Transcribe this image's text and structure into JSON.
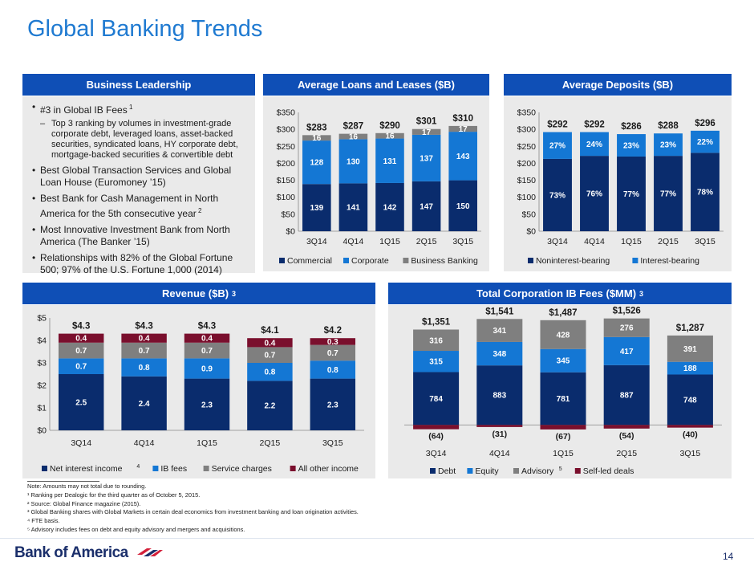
{
  "page_title": "Global Banking Trends",
  "page_number": "14",
  "brand": "Bank of America",
  "colors": {
    "navy": "#0a2c6d",
    "blue": "#1477d4",
    "gray": "#7f7f7f",
    "maroon": "#7a0f2d",
    "header": "#0f4fb6"
  },
  "business_leadership": {
    "heading": "Business Leadership",
    "bullets": [
      {
        "text": "#3 in Global IB Fees",
        "sup": "1"
      },
      {
        "text": "Top 3 ranking by volumes in investment-grade corporate debt, leveraged loans, asset-backed securities, syndicated loans, HY corporate debt, mortgage-backed securities & convertible debt",
        "sub": true
      },
      {
        "text": "Best Global Transaction Services and Global Loan House (Euromoney ’15)"
      },
      {
        "text": "Best Bank for Cash Management in North America for the 5th consecutive year",
        "sup": "2"
      },
      {
        "text": "Most Innovative Investment Bank from North America (The Banker ’15)"
      },
      {
        "text": "Relationships with 82% of the Global Fortune 500; 97% of the U.S. Fortune 1,000 (2014)"
      }
    ]
  },
  "loans_heading": "Average Loans and Leases ($B)",
  "deposits_heading": "Average Deposits ($B)",
  "revenue_heading": "Revenue ($B)",
  "revenue_heading_sup": "3",
  "ibfees_heading": "Total Corporation IB Fees ($MM)",
  "ibfees_heading_sup": "3",
  "chart_data": [
    {
      "id": "loans",
      "type": "bar",
      "stacked": true,
      "title": "Average Loans and Leases ($B)",
      "categories": [
        "3Q14",
        "4Q14",
        "1Q15",
        "2Q15",
        "3Q15"
      ],
      "series": [
        {
          "name": "Commercial",
          "values": [
            139,
            141,
            142,
            147,
            150
          ],
          "color": "#0a2c6d"
        },
        {
          "name": "Corporate",
          "values": [
            128,
            130,
            131,
            137,
            143
          ],
          "color": "#1477d4"
        },
        {
          "name": "Business Banking",
          "values": [
            16,
            16,
            16,
            17,
            17
          ],
          "color": "#7f7f7f"
        }
      ],
      "totals": [
        "$283",
        "$287",
        "$290",
        "$301",
        "$310"
      ],
      "yticks": [
        "$0",
        "$50",
        "$100",
        "$150",
        "$200",
        "$250",
        "$300",
        "$350"
      ],
      "ylim": [
        0,
        350
      ],
      "legend": "bottom"
    },
    {
      "id": "deposits",
      "type": "bar",
      "stacked": true,
      "title": "Average Deposits ($B)",
      "categories": [
        "3Q14",
        "4Q14",
        "1Q15",
        "2Q15",
        "3Q15"
      ],
      "series": [
        {
          "name": "Noninterest-bearing",
          "values": [
            213,
            222,
            220,
            222,
            231
          ],
          "labels": [
            "73%",
            "76%",
            "77%",
            "77%",
            "78%"
          ],
          "color": "#0a2c6d"
        },
        {
          "name": "Interest-bearing",
          "values": [
            79,
            70,
            66,
            66,
            65
          ],
          "labels": [
            "27%",
            "24%",
            "23%",
            "23%",
            "22%"
          ],
          "color": "#1477d4"
        }
      ],
      "totals": [
        "$292",
        "$292",
        "$286",
        "$288",
        "$296"
      ],
      "yticks": [
        "$0",
        "$50",
        "$100",
        "$150",
        "$200",
        "$250",
        "$300",
        "$350"
      ],
      "ylim": [
        0,
        350
      ],
      "legend": "bottom"
    },
    {
      "id": "revenue",
      "type": "bar",
      "stacked": true,
      "title": "Revenue ($B)",
      "categories": [
        "3Q14",
        "4Q14",
        "1Q15",
        "2Q15",
        "3Q15"
      ],
      "series": [
        {
          "name": "Net interest income",
          "sup": "4",
          "values": [
            2.5,
            2.4,
            2.3,
            2.2,
            2.3
          ],
          "labels": [
            "2.5",
            "2.4",
            "2.3",
            "2.2",
            "2.3"
          ],
          "color": "#0a2c6d"
        },
        {
          "name": "IB fees",
          "values": [
            0.7,
            0.8,
            0.9,
            0.8,
            0.8
          ],
          "labels": [
            "0.7",
            "0.8",
            "0.9",
            "0.8",
            "0.8"
          ],
          "color": "#1477d4"
        },
        {
          "name": "Service charges",
          "values": [
            0.7,
            0.7,
            0.7,
            0.7,
            0.7
          ],
          "labels": [
            "0.7",
            "0.7",
            "0.7",
            "0.7",
            "0.7"
          ],
          "color": "#7f7f7f"
        },
        {
          "name": "All other income",
          "values": [
            0.4,
            0.4,
            0.4,
            0.4,
            0.3
          ],
          "labels": [
            "0.4",
            "0.4",
            "0.4",
            "0.4",
            "0.3"
          ],
          "color": "#7a0f2d"
        }
      ],
      "totals": [
        "$4.3",
        "$4.3",
        "$4.3",
        "$4.1",
        "$4.2"
      ],
      "yticks": [
        "$0",
        "$1",
        "$2",
        "$3",
        "$4",
        "$5"
      ],
      "ylim": [
        0,
        5
      ],
      "legend": "bottom"
    },
    {
      "id": "ibfees",
      "type": "bar",
      "stacked": true,
      "title": "Total Corporation IB Fees ($MM)",
      "categories": [
        "3Q14",
        "4Q14",
        "1Q15",
        "2Q15",
        "3Q15"
      ],
      "series": [
        {
          "name": "Debt",
          "values": [
            784,
            883,
            781,
            887,
            748
          ],
          "labels": [
            "784",
            "883",
            "781",
            "887",
            "748"
          ],
          "color": "#0a2c6d"
        },
        {
          "name": "Equity",
          "values": [
            315,
            348,
            345,
            417,
            188
          ],
          "labels": [
            "315",
            "348",
            "345",
            "417",
            "188"
          ],
          "color": "#1477d4"
        },
        {
          "name": "Advisory",
          "sup": "5",
          "values": [
            316,
            341,
            428,
            276,
            391
          ],
          "labels": [
            "316",
            "341",
            "428",
            "276",
            "391"
          ],
          "color": "#7f7f7f"
        },
        {
          "name": "Self-led deals",
          "values": [
            -64,
            -31,
            -67,
            -54,
            -40
          ],
          "labels": [
            "(64)",
            "(31)",
            "(67)",
            "(54)",
            "(40)"
          ],
          "color": "#7a0f2d"
        }
      ],
      "totals": [
        "$1,351",
        "$1,541",
        "$1,487",
        "$1,526",
        "$1,287"
      ],
      "legend": "bottom"
    }
  ],
  "notes": [
    "Note: Amounts may not total due to rounding.",
    "¹ Ranking per Dealogic for the third quarter as of October 5, 2015.",
    "² Source: Global Finance magazine (2015).",
    "³ Global Banking shares with Global Markets in certain deal economics from investment banking and loan origination activities.",
    "⁴ FTE basis.",
    "⁵ Advisory includes fees on debt and equity advisory and mergers and acquisitions."
  ]
}
